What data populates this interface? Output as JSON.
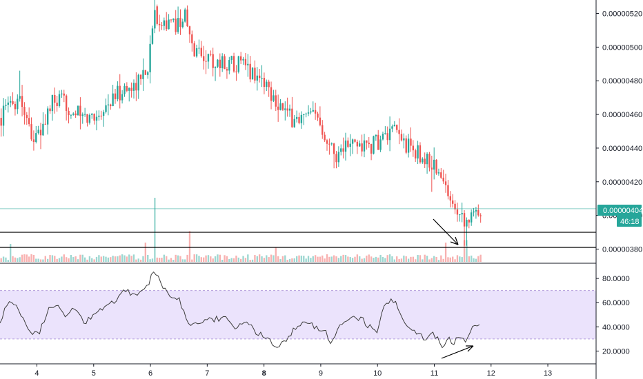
{
  "chart_data": [
    {
      "type": "candlestick",
      "title": "",
      "ylim": [
        3.72e-06,
        5.28e-06
      ],
      "y_ticks": [
        "0.00000380",
        "0.00000400",
        "0.00000420",
        "0.00000440",
        "0.00000460",
        "0.00000480",
        "0.00000500",
        "0.00000520"
      ],
      "x_ticks": [
        {
          "label": "4",
          "x": 4,
          "bold": false
        },
        {
          "label": "5",
          "x": 5,
          "bold": false
        },
        {
          "label": "6",
          "x": 6,
          "bold": false
        },
        {
          "label": "7",
          "x": 7,
          "bold": false
        },
        {
          "label": "8",
          "x": 8,
          "bold": true
        },
        {
          "label": "9",
          "x": 9,
          "bold": false
        },
        {
          "label": "10",
          "x": 10,
          "bold": false
        },
        {
          "label": "11",
          "x": 11,
          "bold": false
        },
        {
          "label": "12",
          "x": 12,
          "bold": false
        },
        {
          "label": "13",
          "x": 13,
          "bold": false
        }
      ],
      "xlim": [
        3.35,
        13.85
      ],
      "current_price": {
        "label": "0.00000404",
        "countdown": "46:18",
        "value": 4.04e-06
      },
      "horizontal_lines": [
        3.9e-06,
        3.81e-06
      ],
      "price_path": [
        [
          3.35,
          4.58e-06
        ],
        [
          3.55,
          4.66e-06
        ],
        [
          3.7,
          4.72e-06
        ],
        [
          3.85,
          4.55e-06
        ],
        [
          3.95,
          4.45e-06
        ],
        [
          4.05,
          4.48e-06
        ],
        [
          4.25,
          4.66e-06
        ],
        [
          4.45,
          4.67e-06
        ],
        [
          4.65,
          4.62e-06
        ],
        [
          4.85,
          4.57e-06
        ],
        [
          5.05,
          4.6e-06
        ],
        [
          5.25,
          4.66e-06
        ],
        [
          5.45,
          4.73e-06
        ],
        [
          5.65,
          4.76e-06
        ],
        [
          5.85,
          4.82e-06
        ],
        [
          5.98,
          4.92e-06
        ],
        [
          6.05,
          5.2e-06
        ],
        [
          6.2,
          5.17e-06
        ],
        [
          6.35,
          5.12e-06
        ],
        [
          6.5,
          5.15e-06
        ],
        [
          6.6,
          5.2e-06
        ],
        [
          6.72,
          5e-06
        ],
        [
          6.9,
          4.96e-06
        ],
        [
          7.1,
          4.92e-06
        ],
        [
          7.3,
          4.9e-06
        ],
        [
          7.5,
          4.91e-06
        ],
        [
          7.7,
          4.87e-06
        ],
        [
          7.85,
          4.84e-06
        ],
        [
          8.0,
          4.8e-06
        ],
        [
          8.15,
          4.72e-06
        ],
        [
          8.3,
          4.65e-06
        ],
        [
          8.45,
          4.58e-06
        ],
        [
          8.6,
          4.57e-06
        ],
        [
          8.8,
          4.58e-06
        ],
        [
          8.95,
          4.58e-06
        ],
        [
          9.1,
          4.48e-06
        ],
        [
          9.25,
          4.36e-06
        ],
        [
          9.4,
          4.41e-06
        ],
        [
          9.6,
          4.42e-06
        ],
        [
          9.8,
          4.41e-06
        ],
        [
          9.95,
          4.42e-06
        ],
        [
          10.1,
          4.46e-06
        ],
        [
          10.25,
          4.48e-06
        ],
        [
          10.35,
          4.49e-06
        ],
        [
          10.5,
          4.42e-06
        ],
        [
          10.65,
          4.38e-06
        ],
        [
          10.8,
          4.34e-06
        ],
        [
          10.95,
          4.31e-06
        ],
        [
          11.05,
          4.27e-06
        ],
        [
          11.15,
          4.19e-06
        ],
        [
          11.25,
          4.12e-06
        ],
        [
          11.35,
          4.09e-06
        ],
        [
          11.45,
          4.02e-06
        ],
        [
          11.55,
          3.98e-06
        ],
        [
          11.65,
          3.98e-06
        ],
        [
          11.8,
          4.04e-06
        ]
      ]
    },
    {
      "type": "bar",
      "title": "Volume",
      "note": "volume histogram overlay at bottom of price pane",
      "spikes": [
        [
          6.07,
          1.0
        ],
        [
          6.7,
          0.48
        ],
        [
          5.9,
          0.3
        ],
        [
          3.55,
          0.28
        ],
        [
          11.55,
          0.34
        ],
        [
          11.2,
          0.3
        ],
        [
          8.2,
          0.22
        ]
      ]
    },
    {
      "type": "line",
      "title": "RSI",
      "ylim": [
        10,
        92
      ],
      "y_ticks": [
        "20.0000",
        "40.0000",
        "60.0000",
        "80.0000"
      ],
      "band": [
        30,
        70
      ],
      "rsi_path": [
        [
          3.35,
          42
        ],
        [
          3.5,
          62
        ],
        [
          3.65,
          55
        ],
        [
          3.75,
          48
        ],
        [
          3.9,
          35
        ],
        [
          4.05,
          36
        ],
        [
          4.2,
          55
        ],
        [
          4.35,
          58
        ],
        [
          4.5,
          48
        ],
        [
          4.65,
          55
        ],
        [
          4.85,
          44
        ],
        [
          5.0,
          50
        ],
        [
          5.2,
          58
        ],
        [
          5.4,
          62
        ],
        [
          5.55,
          72
        ],
        [
          5.7,
          65
        ],
        [
          5.85,
          70
        ],
        [
          5.95,
          74
        ],
        [
          6.07,
          88
        ],
        [
          6.2,
          75
        ],
        [
          6.35,
          62
        ],
        [
          6.5,
          65
        ],
        [
          6.65,
          43
        ],
        [
          6.9,
          44
        ],
        [
          7.1,
          46
        ],
        [
          7.3,
          48
        ],
        [
          7.5,
          40
        ],
        [
          7.7,
          44
        ],
        [
          7.85,
          35
        ],
        [
          8.05,
          32
        ],
        [
          8.2,
          22
        ],
        [
          8.35,
          28
        ],
        [
          8.5,
          36
        ],
        [
          8.7,
          44
        ],
        [
          8.9,
          40
        ],
        [
          9.05,
          38
        ],
        [
          9.2,
          26
        ],
        [
          9.35,
          42
        ],
        [
          9.55,
          46
        ],
        [
          9.7,
          48
        ],
        [
          9.85,
          40
        ],
        [
          10.0,
          36
        ],
        [
          10.1,
          55
        ],
        [
          10.2,
          60
        ],
        [
          10.3,
          62
        ],
        [
          10.45,
          44
        ],
        [
          10.6,
          38
        ],
        [
          10.75,
          33
        ],
        [
          10.85,
          30
        ],
        [
          11.0,
          34
        ],
        [
          11.15,
          24
        ],
        [
          11.25,
          30
        ],
        [
          11.35,
          26
        ],
        [
          11.45,
          34
        ],
        [
          11.55,
          28
        ],
        [
          11.65,
          38
        ],
        [
          11.8,
          43
        ]
      ]
    }
  ]
}
